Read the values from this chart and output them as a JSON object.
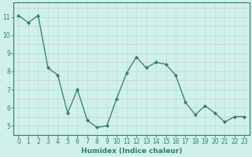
{
  "x": [
    0,
    1,
    2,
    3,
    4,
    5,
    6,
    7,
    8,
    9,
    10,
    11,
    12,
    13,
    14,
    15,
    16,
    17,
    18,
    19,
    20,
    21,
    22,
    23
  ],
  "y": [
    11.1,
    10.7,
    11.1,
    8.2,
    7.8,
    5.7,
    7.0,
    5.3,
    4.9,
    5.0,
    6.5,
    7.9,
    8.8,
    8.2,
    8.5,
    8.4,
    7.8,
    6.3,
    5.6,
    6.1,
    5.7,
    5.2,
    5.5,
    5.5
  ],
  "line_color": "#2e7d6e",
  "marker": "D",
  "markersize": 2.0,
  "linewidth": 0.9,
  "bg_color": "#cff0eb",
  "grid_color": "#b8ddd8",
  "axis_color": "#2e7d6e",
  "xlabel": "Humidex (Indice chaleur)",
  "xlabel_fontsize": 6.5,
  "ylabel_ticks": [
    5,
    6,
    7,
    8,
    9,
    10,
    11
  ],
  "xlim": [
    -0.5,
    23.5
  ],
  "ylim": [
    4.5,
    11.8
  ],
  "xtick_labels": [
    "0",
    "1",
    "2",
    "3",
    "4",
    "5",
    "6",
    "7",
    "8",
    "9",
    "10",
    "11",
    "12",
    "13",
    "14",
    "15",
    "16",
    "17",
    "18",
    "19",
    "20",
    "21",
    "22",
    "23"
  ],
  "tick_fontsize": 5.5
}
